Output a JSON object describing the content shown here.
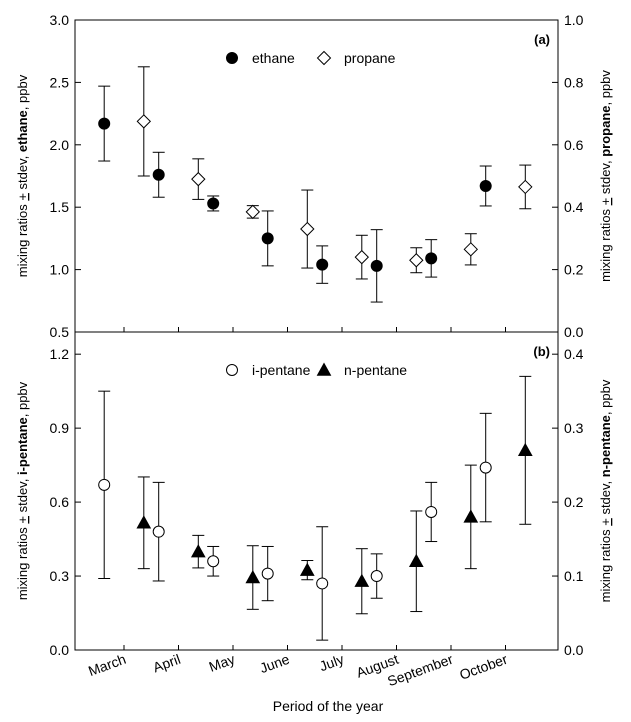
{
  "x_label": "Period of the year",
  "chart_data": [
    {
      "type": "scatter",
      "panel_label": "(a)",
      "categories": [
        "March",
        "April",
        "May",
        "June",
        "July",
        "August",
        "September",
        "October"
      ],
      "left_axis": {
        "label_parts": [
          "mixing ratios ",
          "+",
          " stdev, ",
          "ethane",
          ", ppbv"
        ],
        "ylim": [
          0.5,
          3.0
        ],
        "ticks": [
          "0.5",
          "1.0",
          "1.5",
          "2.0",
          "2.5",
          "3.0"
        ]
      },
      "right_axis": {
        "label_parts": [
          "mixing ratios ",
          "+",
          " stdev, ",
          "propane",
          ", ppbv"
        ],
        "ylim": [
          0.0,
          1.0
        ],
        "ticks": [
          "0.0",
          "0.2",
          "0.4",
          "0.6",
          "0.8",
          "1.0"
        ]
      },
      "series": [
        {
          "name": "ethane",
          "axis": "left",
          "marker": "filled-circle",
          "values": [
            2.17,
            1.76,
            1.53,
            1.25,
            1.04,
            1.03,
            1.09,
            1.67
          ],
          "errors": [
            0.3,
            0.18,
            0.06,
            0.22,
            0.15,
            0.29,
            0.15,
            0.16
          ]
        },
        {
          "name": "propane",
          "axis": "right",
          "marker": "open-diamond",
          "values": [
            0.675,
            0.49,
            0.385,
            0.33,
            0.24,
            0.23,
            0.265,
            0.465
          ],
          "errors": [
            0.175,
            0.065,
            0.02,
            0.125,
            0.07,
            0.04,
            0.05,
            0.07
          ]
        }
      ],
      "legend": "top-center"
    },
    {
      "type": "scatter",
      "panel_label": "(b)",
      "categories": [
        "March",
        "April",
        "May",
        "June",
        "July",
        "August",
        "September",
        "October"
      ],
      "left_axis": {
        "label_parts": [
          "mixing ratios ",
          "+",
          " stdev, ",
          "i-pentane",
          ", ppbv"
        ],
        "ylim": [
          0.0,
          1.29
        ],
        "ticks": [
          "0.0",
          "0.3",
          "0.6",
          "0.9",
          "1.2"
        ]
      },
      "right_axis": {
        "label_parts": [
          "mixing ratios ",
          "+",
          " stdev, ",
          "n-pentane",
          ", ppbv"
        ],
        "ylim": [
          0.0,
          0.43
        ],
        "ticks": [
          "0.0",
          "0.1",
          "0.2",
          "0.3",
          "0.4"
        ]
      },
      "series": [
        {
          "name": "i-pentane",
          "axis": "left",
          "marker": "open-circle",
          "values": [
            0.67,
            0.48,
            0.36,
            0.31,
            0.27,
            0.3,
            0.56,
            0.74
          ],
          "errors": [
            0.38,
            0.2,
            0.06,
            0.11,
            0.23,
            0.09,
            0.12,
            0.22
          ]
        },
        {
          "name": "n-pentane",
          "axis": "right",
          "marker": "filled-triangle",
          "values": [
            0.172,
            0.133,
            0.098,
            0.108,
            0.093,
            0.12,
            0.18,
            0.27
          ],
          "errors": [
            0.062,
            0.022,
            0.043,
            0.013,
            0.044,
            0.068,
            0.07,
            0.1
          ]
        }
      ],
      "legend": "top-center"
    }
  ]
}
